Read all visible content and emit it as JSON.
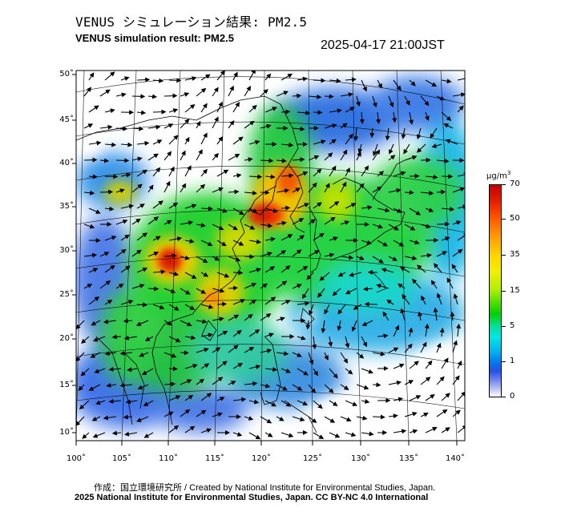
{
  "title_jp": "VENUS シミュレーション結果: PM2.5",
  "title_en": "VENUS simulation result: PM2.5",
  "timestamp": "2025-04-17 21:00JST",
  "latitude_labels": [
    "50˚",
    "45˚",
    "40˚",
    "35˚",
    "30˚",
    "25˚",
    "20˚",
    "15˚",
    "10˚"
  ],
  "longitude_labels": [
    "100˚",
    "105˚",
    "110˚",
    "115˚",
    "120˚",
    "125˚",
    "130˚",
    "135˚",
    "140˚"
  ],
  "colorbar": {
    "unit_base": "µg/m",
    "unit_exp": "3",
    "ticks": [
      "70",
      "50",
      "35",
      "15",
      "5",
      "1",
      "0"
    ]
  },
  "credit_line1": "作成：国立環境研究所 / Created by National Institute for Environmental Studies, Japan.",
  "credit_line2": "2025 National Institute for Environmental Studies, Japan. CC BY-NC 4.0 International",
  "colors": {
    "land_border": "#000000",
    "graticule": "#000000",
    "low": "#3060e0",
    "mid": "#00d200",
    "high": "#e02000"
  }
}
